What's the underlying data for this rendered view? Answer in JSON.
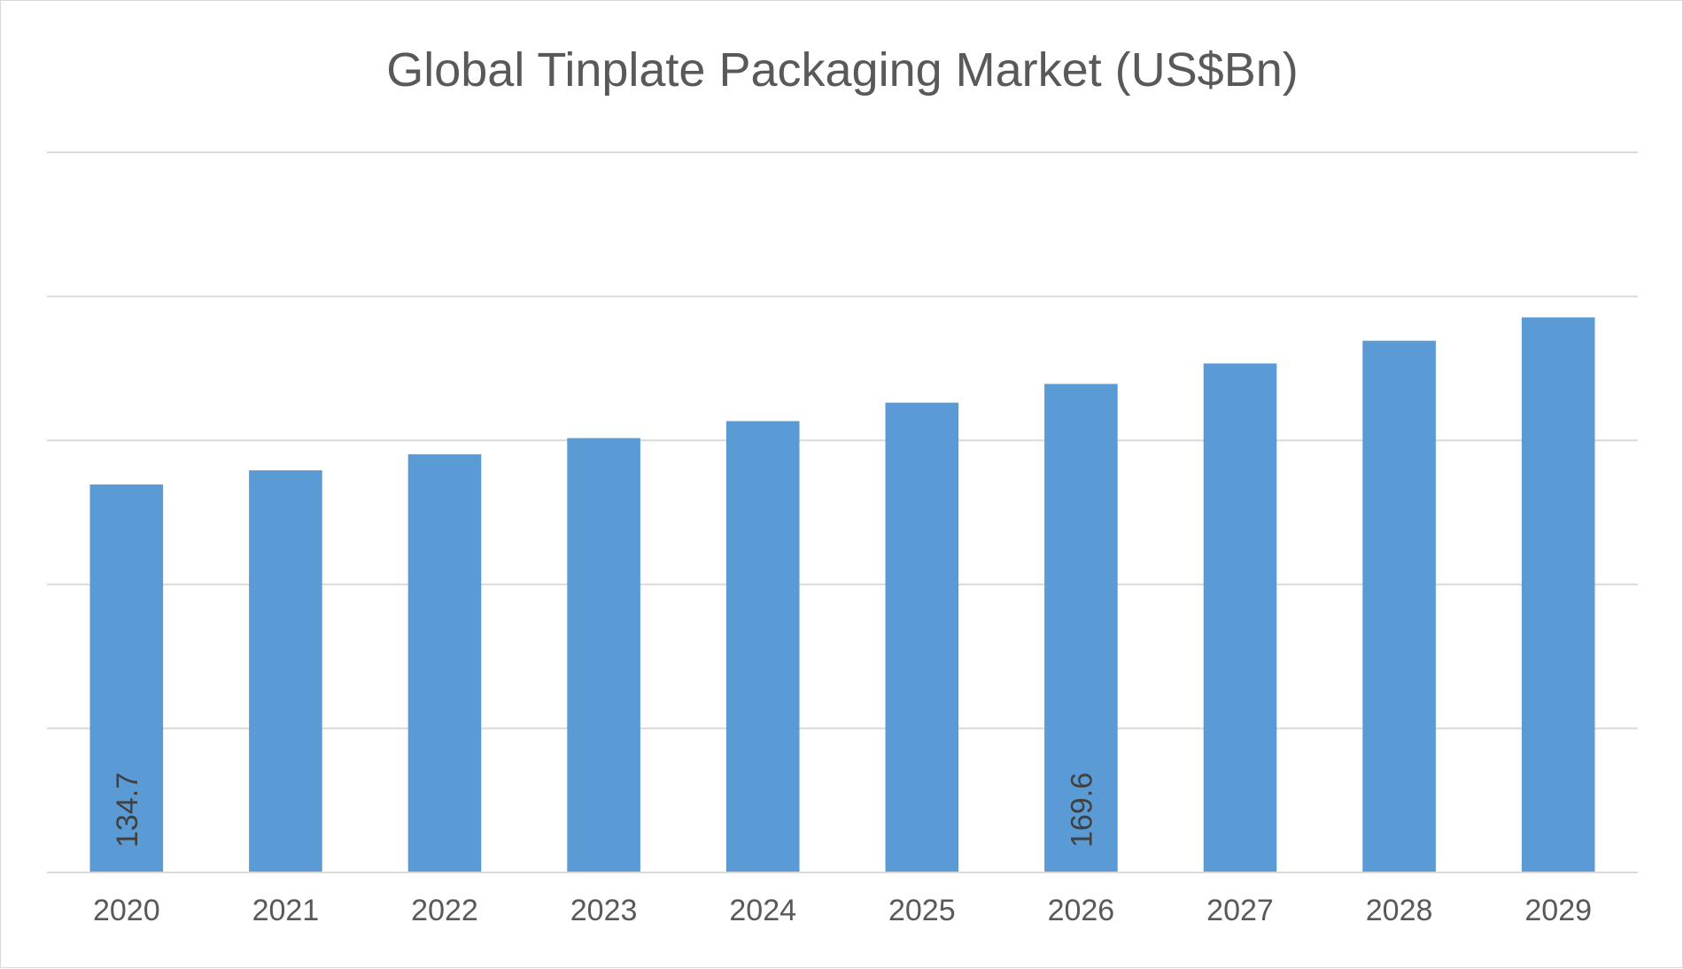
{
  "chart_data": {
    "type": "bar",
    "title": "Global Tinplate Packaging Market (US$Bn)",
    "xlabel": "",
    "ylabel": "",
    "categories": [
      "2020",
      "2021",
      "2022",
      "2023",
      "2024",
      "2025",
      "2026",
      "2027",
      "2028",
      "2029"
    ],
    "values": [
      134.7,
      139.6,
      145.2,
      150.8,
      156.7,
      163.1,
      169.6,
      176.7,
      184.6,
      192.7
    ],
    "data_labels": [
      {
        "category": "2020",
        "text": "134.7"
      },
      {
        "category": "2026",
        "text": "169.6"
      }
    ],
    "ylim": [
      0,
      250
    ],
    "y_axis_labels_visible": false,
    "grid": true,
    "gridline_count": 5,
    "legend": "none",
    "colors": {
      "bar": "#5b9bd5",
      "grid": "#d9d9d9",
      "axis": "#d9d9d9",
      "text": "#595959"
    }
  }
}
